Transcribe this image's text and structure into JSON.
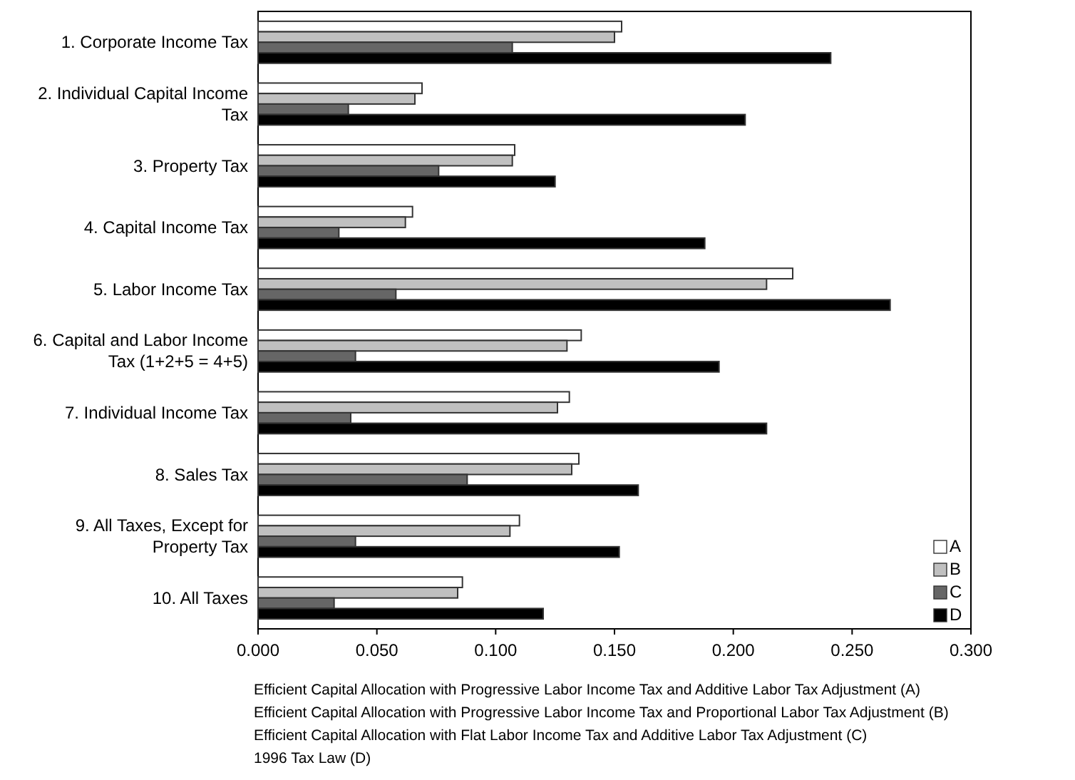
{
  "chart_data": {
    "type": "bar",
    "orientation": "horizontal",
    "categories": [
      "1. Corporate Income Tax",
      "2. Individual Capital Income Tax",
      "3. Property Tax",
      "4. Capital Income Tax",
      "5. Labor Income Tax",
      "6. Capital and Labor Income Tax (1+2+5 = 4+5)",
      "7. Individual Income Tax",
      "8. Sales Tax",
      "9. All Taxes, Except for Property Tax",
      "10. All Taxes"
    ],
    "series": [
      {
        "name": "A",
        "color": "#ffffff",
        "values": [
          0.153,
          0.069,
          0.108,
          0.065,
          0.225,
          0.136,
          0.131,
          0.135,
          0.11,
          0.086
        ]
      },
      {
        "name": "B",
        "color": "#c0c0c0",
        "values": [
          0.15,
          0.066,
          0.107,
          0.062,
          0.214,
          0.13,
          0.126,
          0.132,
          0.106,
          0.084
        ]
      },
      {
        "name": "C",
        "color": "#666666",
        "values": [
          0.107,
          0.038,
          0.076,
          0.034,
          0.058,
          0.041,
          0.039,
          0.088,
          0.041,
          0.032
        ]
      },
      {
        "name": "D",
        "color": "#000000",
        "values": [
          0.241,
          0.205,
          0.125,
          0.188,
          0.266,
          0.194,
          0.214,
          0.16,
          0.152,
          0.12
        ]
      }
    ],
    "xlim": [
      0,
      0.3
    ],
    "xticks": [
      {
        "value": 0,
        "label": "0.000"
      },
      {
        "value": 0.05,
        "label": "0.050"
      },
      {
        "value": 0.1,
        "label": "0.100"
      },
      {
        "value": 0.15,
        "label": "0.150"
      },
      {
        "value": 0.2,
        "label": "0.200"
      },
      {
        "value": 0.25,
        "label": "0.250"
      },
      {
        "value": 0.3,
        "label": "0.300"
      }
    ],
    "legend": "bottom right",
    "annotations": [
      "Efficient Capital Allocation with Progressive Labor Income Tax and Additive Labor Tax Adjustment (A)",
      "Efficient Capital Allocation with Progressive Labor Income Tax and Proportional Labor Tax Adjustment (B)",
      "Efficient Capital Allocation with Flat Labor Income Tax and Additive Labor Tax Adjustment (C)",
      "1996 Tax Law (D)"
    ]
  }
}
